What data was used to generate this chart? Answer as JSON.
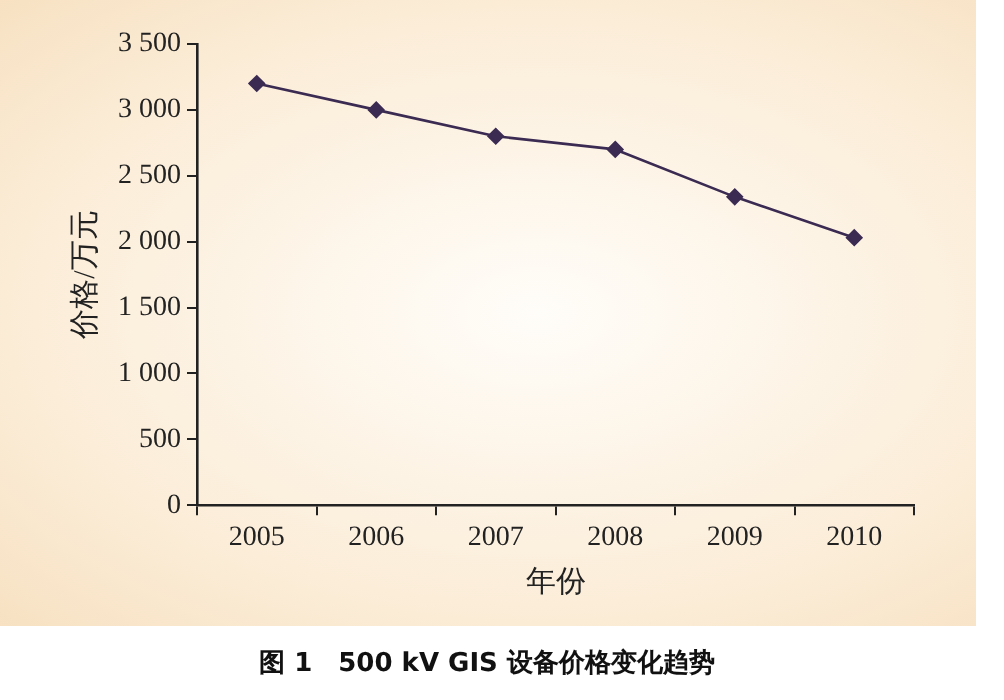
{
  "chart_data": {
    "type": "line",
    "title": "图 1　500 kV GIS 设备价格变化趋势",
    "xlabel": "年份",
    "ylabel": "价格/万元",
    "categories": [
      "2005",
      "2006",
      "2007",
      "2008",
      "2009",
      "2010"
    ],
    "series": [
      {
        "color": "#3b2a52",
        "values": [
          3200,
          3000,
          2800,
          2700,
          2340,
          2030
        ]
      }
    ],
    "ylim": [
      0,
      3500
    ],
    "yticks": [
      0,
      500,
      {
        "value": 1000,
        "label": "1 000"
      },
      {
        "value": 1500,
        "label": "1 500"
      },
      {
        "value": 2000,
        "label": "2 000"
      },
      {
        "value": 2500,
        "label": "2 500"
      },
      {
        "value": 3000,
        "label": "3 000"
      },
      {
        "value": 3500,
        "label": "3 500"
      }
    ],
    "grid": false,
    "legend": false,
    "marker": "diamond",
    "line_style": "solid"
  }
}
